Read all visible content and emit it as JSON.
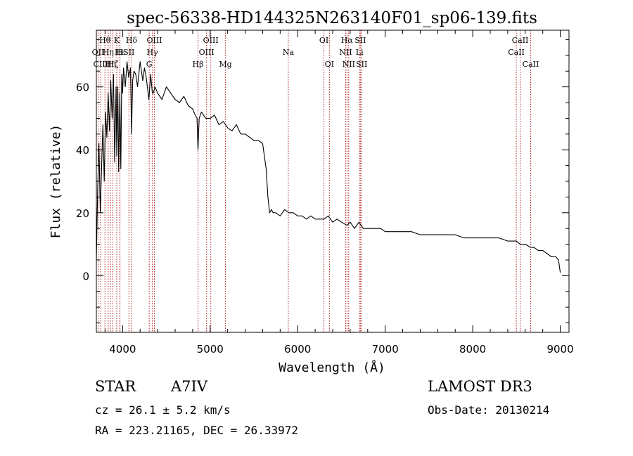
{
  "chart_data": {
    "type": "line",
    "title": "spec-56338-HD144325N263140F01_sp06-139.fits",
    "xlabel": "Wavelength (Å)",
    "ylabel": "Flux (relative)",
    "xlim": [
      3700,
      9100
    ],
    "ylim": [
      -18,
      78
    ],
    "xticks": [
      4000,
      5000,
      6000,
      7000,
      8000,
      9000
    ],
    "yticks": [
      0,
      20,
      40,
      60
    ],
    "series": [
      {
        "name": "flux",
        "x": [
          3700,
          3715,
          3730,
          3745,
          3760,
          3775,
          3790,
          3805,
          3820,
          3835,
          3850,
          3865,
          3880,
          3895,
          3910,
          3925,
          3933,
          3945,
          3955,
          3968,
          3980,
          3990,
          4000,
          4010,
          4030,
          4050,
          4070,
          4090,
          4102,
          4115,
          4130,
          4150,
          4170,
          4200,
          4230,
          4250,
          4270,
          4300,
          4320,
          4340,
          4350,
          4370,
          4400,
          4450,
          4500,
          4550,
          4600,
          4650,
          4700,
          4750,
          4800,
          4830,
          4850,
          4861,
          4875,
          4900,
          4950,
          5000,
          5050,
          5100,
          5150,
          5200,
          5250,
          5300,
          5350,
          5400,
          5450,
          5500,
          5550,
          5600,
          5640,
          5660,
          5680,
          5700,
          5720,
          5750,
          5800,
          5850,
          5900,
          5950,
          6000,
          6050,
          6100,
          6150,
          6200,
          6250,
          6300,
          6350,
          6400,
          6450,
          6500,
          6563,
          6600,
          6650,
          6700,
          6750,
          6800,
          6850,
          6900,
          6950,
          7000,
          7100,
          7200,
          7300,
          7400,
          7500,
          7600,
          7700,
          7800,
          7900,
          8000,
          8100,
          8200,
          8300,
          8400,
          8498,
          8542,
          8600,
          8662,
          8700,
          8750,
          8800,
          8850,
          8900,
          8950,
          8980,
          9000
        ],
        "values": [
          5,
          28,
          42,
          20,
          35,
          48,
          30,
          52,
          44,
          58,
          46,
          62,
          50,
          64,
          36,
          60,
          38,
          60,
          33,
          58,
          34,
          64,
          58,
          66,
          60,
          68,
          63,
          66,
          45,
          62,
          65,
          64,
          60,
          68,
          62,
          66,
          63,
          56,
          64,
          58,
          58,
          60,
          58,
          56,
          60,
          58,
          56,
          55,
          57,
          54,
          53,
          51,
          50,
          40,
          50,
          52,
          50,
          50,
          51,
          48,
          49,
          47,
          46,
          48,
          45,
          45,
          44,
          43,
          43,
          42,
          34,
          25,
          20,
          21,
          20,
          20,
          19,
          21,
          20,
          20,
          19,
          19,
          18,
          19,
          18,
          18,
          18,
          19,
          17,
          18,
          17,
          16,
          17,
          15,
          17,
          15,
          15,
          15,
          15,
          15,
          14,
          14,
          14,
          14,
          13,
          13,
          13,
          13,
          13,
          12,
          12,
          12,
          12,
          12,
          11,
          11,
          10,
          10,
          9,
          9,
          8,
          8,
          7,
          6,
          6,
          5,
          1
        ]
      }
    ],
    "lines": [
      {
        "wave": 3720,
        "label": "OII",
        "row": 1
      },
      {
        "wave": 3750,
        "label": "CIII",
        "row": 2
      },
      {
        "wave": 3798,
        "label": "Hθ",
        "row": 0
      },
      {
        "wave": 3835,
        "label": "Hη",
        "row": 1
      },
      {
        "wave": 3860,
        "label": "Hη",
        "row": 2
      },
      {
        "wave": 3889,
        "label": "Hζ",
        "row": 2
      },
      {
        "wave": 3933,
        "label": "K",
        "row": 0
      },
      {
        "wave": 3968,
        "label": "H",
        "row": 1
      },
      {
        "wave": 3970,
        "label": "Hε",
        "row": 1
      },
      {
        "wave": 4072,
        "label": "SII",
        "row": 1
      },
      {
        "wave": 4102,
        "label": "Hδ",
        "row": 0
      },
      {
        "wave": 4304,
        "label": "G",
        "row": 2
      },
      {
        "wave": 4340,
        "label": "Hγ",
        "row": 1
      },
      {
        "wave": 4363,
        "label": "OIII",
        "row": 0
      },
      {
        "wave": 4861,
        "label": "Hβ",
        "row": 2
      },
      {
        "wave": 4959,
        "label": "OIII",
        "row": 1
      },
      {
        "wave": 5007,
        "label": "OIII",
        "row": 0
      },
      {
        "wave": 5175,
        "label": "Mg",
        "row": 2
      },
      {
        "wave": 5893,
        "label": "Na",
        "row": 1
      },
      {
        "wave": 6300,
        "label": "OI",
        "row": 0
      },
      {
        "wave": 6363,
        "label": "OI",
        "row": 2
      },
      {
        "wave": 6548,
        "label": "NII",
        "row": 1
      },
      {
        "wave": 6563,
        "label": "Hα",
        "row": 0
      },
      {
        "wave": 6583,
        "label": "NII",
        "row": 2
      },
      {
        "wave": 6707,
        "label": "Li",
        "row": 1
      },
      {
        "wave": 6716,
        "label": "SII",
        "row": 0
      },
      {
        "wave": 6731,
        "label": "SII",
        "row": 2
      },
      {
        "wave": 8498,
        "label": "CaII",
        "row": 1
      },
      {
        "wave": 8542,
        "label": "CaII",
        "row": 0
      },
      {
        "wave": 8662,
        "label": "CaII",
        "row": 2
      }
    ]
  },
  "info": {
    "class": "STAR",
    "subclass": "A7IV",
    "survey": "LAMOST DR3",
    "cz": "cz = 26.1 ± 5.2 km/s",
    "obs_date": "Obs-Date: 20130214",
    "coords": "RA = 223.21165, DEC =  26.33972"
  },
  "colors": {
    "line_marker": "#b22222",
    "spectrum": "#000000",
    "axis": "#000000"
  }
}
